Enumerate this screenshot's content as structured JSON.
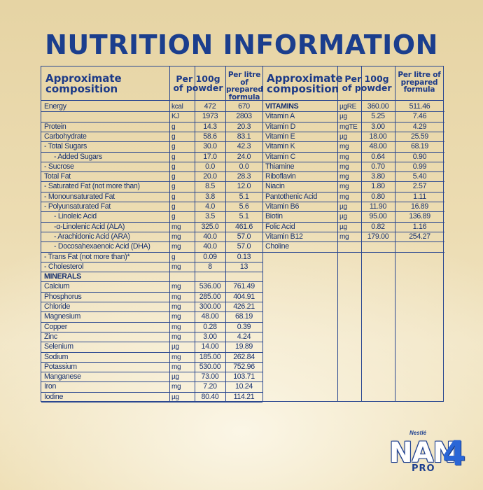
{
  "title": "NUTRITION INFORMATION",
  "headers": {
    "composition": "Approximate composition",
    "per100g": "Per 100g of powder",
    "perlitre": "Per litre of prepared formula"
  },
  "left_rows": [
    [
      "Energy",
      "kcal",
      "472",
      "670"
    ],
    [
      "",
      "KJ",
      "1973",
      "2803"
    ],
    [
      "Protein",
      "g",
      "14.3",
      "20.3"
    ],
    [
      "Carbohydrate",
      "g",
      "58.6",
      "83.1"
    ],
    [
      "- Total Sugars",
      "g",
      "30.0",
      "42.3"
    ],
    [
      "- Added Sugars",
      "g",
      "17.0",
      "24.0"
    ],
    [
      "- Sucrose",
      "g",
      "0.0",
      "0.0"
    ],
    [
      "Total Fat",
      "g",
      "20.0",
      "28.3"
    ],
    [
      "- Saturated Fat (not more than)",
      "g",
      "8.5",
      "12.0"
    ],
    [
      "- Monounsaturated Fat",
      "g",
      "3.8",
      "5.1"
    ],
    [
      "- Polyunsaturated Fat",
      "g",
      "4.0",
      "5.6"
    ],
    [
      "- Linoleic Acid",
      "g",
      "3.5",
      "5.1"
    ],
    [
      "-α-Linolenic Acid (ALA)",
      "mg",
      "325.0",
      "461.6"
    ],
    [
      "- Arachidonic Acid (ARA)",
      "mg",
      "40.0",
      "57.0"
    ],
    [
      "- Docosahexaenoic Acid (DHA)",
      "mg",
      "40.0",
      "57.0"
    ],
    [
      "- Trans Fat (not more than)*",
      "g",
      "0.09",
      "0.13"
    ],
    [
      "- Cholesterol",
      "mg",
      "8",
      "13"
    ],
    [
      "MINERALS",
      "",
      "",
      ""
    ],
    [
      "Calcium",
      "mg",
      "536.00",
      "761.49"
    ],
    [
      "Phosphorus",
      "mg",
      "285.00",
      "404.91"
    ],
    [
      "Chloride",
      "mg",
      "300.00",
      "426.21"
    ],
    [
      "Magnesium",
      "mg",
      "48.00",
      "68.19"
    ],
    [
      "Copper",
      "mg",
      "0.28",
      "0.39"
    ],
    [
      "Zinc",
      "mg",
      "3.00",
      "4.24"
    ],
    [
      "Selenium",
      "µg",
      "14.00",
      "19.89"
    ],
    [
      "Sodium",
      "mg",
      "185.00",
      "262.84"
    ],
    [
      "Potassium",
      "mg",
      "530.00",
      "752.96"
    ],
    [
      "Manganese",
      "µg",
      "73.00",
      "103.71"
    ],
    [
      "Iron",
      "mg",
      "7.20",
      "10.24"
    ],
    [
      "Iodine",
      "µg",
      "80.40",
      "114.21"
    ]
  ],
  "right_rows": [
    [
      "VITAMINS",
      "µgRE",
      "360.00",
      "511.46"
    ],
    [
      "Vitamin A",
      "µg",
      "5.25",
      "7.46"
    ],
    [
      "Vitamin D",
      "mgTE",
      "3.00",
      "4.29"
    ],
    [
      "Vitamin E",
      "µg",
      "18.00",
      "25.59"
    ],
    [
      "Vitamin K",
      "mg",
      "48.00",
      "68.19"
    ],
    [
      "Vitamin C",
      "mg",
      "0.64",
      "0.90"
    ],
    [
      "Thiamine",
      "mg",
      "0.70",
      "0.99"
    ],
    [
      "Riboflavin",
      "mg",
      "3.80",
      "5.40"
    ],
    [
      "Niacin",
      "mg",
      "1.80",
      "2.57"
    ],
    [
      "Pantothenic Acid",
      "mg",
      "0.80",
      "1.11"
    ],
    [
      "Vitamin B6",
      "µg",
      "11.90",
      "16.89"
    ],
    [
      "Biotin",
      "µg",
      "95.00",
      "136.89"
    ],
    [
      "Folic Acid",
      "µg",
      "0.82",
      "1.16"
    ],
    [
      "Vitamin B12",
      "mg",
      "179.00",
      "254.27"
    ],
    [
      "Choline",
      "",
      "",
      ""
    ]
  ],
  "brand": {
    "maker": "Nestlé",
    "product": "NAN",
    "variant": "PRO",
    "stage": "4"
  }
}
